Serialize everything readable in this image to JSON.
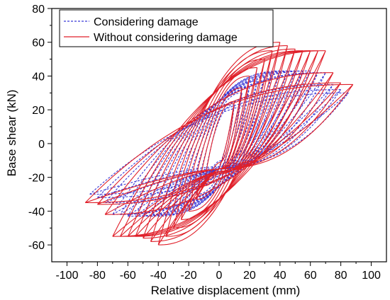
{
  "chart_data": {
    "type": "line",
    "title": "",
    "xlabel": "Relative displacement (mm)",
    "ylabel": "Base shear (kN)",
    "xlim": [
      -110,
      110
    ],
    "ylim": [
      -70,
      80
    ],
    "xticks": [
      -100,
      -80,
      -60,
      -40,
      -20,
      0,
      20,
      40,
      60,
      80,
      100
    ],
    "yticks": [
      -60,
      -40,
      -20,
      0,
      20,
      40,
      60,
      80
    ],
    "grid": false,
    "legend_position": "top-left",
    "colors": {
      "series_0": "#3b3bd6",
      "series_1": "#e0202a"
    },
    "series": [
      {
        "name": "Considering damage",
        "style": "dashed",
        "cycles": [
          {
            "dmax": 10,
            "fmax": 23
          },
          {
            "dmax": 15,
            "fmax": 30
          },
          {
            "dmax": 20,
            "fmax": 34
          },
          {
            "dmax": 25,
            "fmax": 37
          },
          {
            "dmax": 30,
            "fmax": 40
          },
          {
            "dmax": 35,
            "fmax": 42
          },
          {
            "dmax": 40,
            "fmax": 43
          },
          {
            "dmax": 45,
            "fmax": 43
          },
          {
            "dmax": 50,
            "fmax": 43
          },
          {
            "dmax": 55,
            "fmax": 43
          },
          {
            "dmax": 60,
            "fmax": 43
          },
          {
            "dmax": 65,
            "fmax": 42
          },
          {
            "dmax": 70,
            "fmax": 42
          },
          {
            "dmax": 75,
            "fmax": 35
          },
          {
            "dmax": 80,
            "fmax": 32
          },
          {
            "dmax": 85,
            "fmax": 30
          }
        ]
      },
      {
        "name": "Without considering damage",
        "style": "solid",
        "cycles": [
          {
            "dmax": 10,
            "fmax": 25
          },
          {
            "dmax": 15,
            "fmax": 33
          },
          {
            "dmax": 20,
            "fmax": 40
          },
          {
            "dmax": 25,
            "fmax": 45
          },
          {
            "dmax": 30,
            "fmax": 50
          },
          {
            "dmax": 35,
            "fmax": 55
          },
          {
            "dmax": 40,
            "fmax": 60
          },
          {
            "dmax": 45,
            "fmax": 58
          },
          {
            "dmax": 50,
            "fmax": 56
          },
          {
            "dmax": 55,
            "fmax": 55
          },
          {
            "dmax": 60,
            "fmax": 55
          },
          {
            "dmax": 65,
            "fmax": 55
          },
          {
            "dmax": 70,
            "fmax": 55
          },
          {
            "dmax": 75,
            "fmax": 42
          },
          {
            "dmax": 80,
            "fmax": 36
          },
          {
            "dmax": 88,
            "fmax": 35
          }
        ]
      }
    ]
  }
}
